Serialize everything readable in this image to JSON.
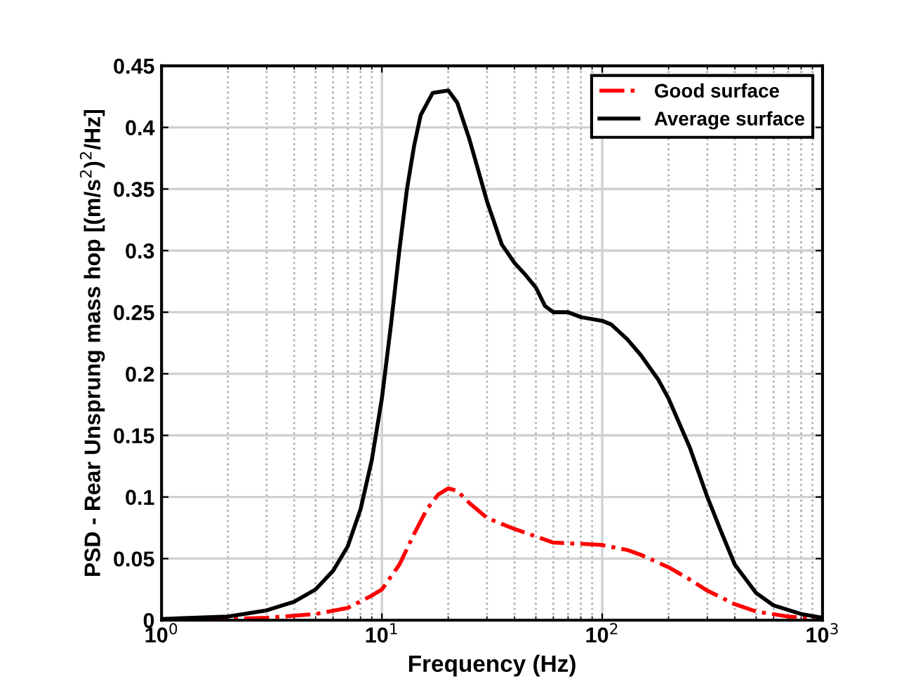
{
  "chart_data": {
    "type": "line",
    "xlabel": "Frequency (Hz)",
    "ylabel": "PSD - Rear Unsprung mass hop [(m/s$^{2}$)$^{2}$/Hz]",
    "log": "x",
    "xlim": [
      1,
      1000
    ],
    "xticks": [
      {
        "value": 1,
        "label": "10$^{0}$"
      },
      {
        "value": 10,
        "label": "10$^{1}$"
      },
      {
        "value": 100,
        "label": "10$^{2}$"
      },
      {
        "value": 1000,
        "label": "10$^{3}$"
      }
    ],
    "ylim": [
      0,
      0.45
    ],
    "yticks": [
      0,
      0.05,
      0.1,
      0.15,
      0.2,
      0.25,
      0.3,
      0.35,
      0.4,
      0.45
    ],
    "grid": true,
    "legend": "top right",
    "marker": "none",
    "series": [
      {
        "name": "Good surface",
        "color": "#ff0000",
        "line_style": "dashdot",
        "x": [
          1,
          2,
          3,
          5,
          7,
          9,
          10,
          12,
          14,
          16,
          18,
          20,
          22,
          25,
          30,
          40,
          50,
          60,
          80,
          100,
          130,
          150,
          200,
          250,
          300,
          400,
          500,
          700,
          1000
        ],
        "values": [
          0,
          0.001,
          0.002,
          0.005,
          0.01,
          0.02,
          0.025,
          0.045,
          0.07,
          0.09,
          0.102,
          0.107,
          0.105,
          0.095,
          0.083,
          0.074,
          0.068,
          0.063,
          0.062,
          0.061,
          0.057,
          0.053,
          0.043,
          0.033,
          0.024,
          0.013,
          0.007,
          0.003,
          0.001
        ]
      },
      {
        "name": "Average surface",
        "color": "#000000",
        "line_style": "solid",
        "x": [
          1,
          2,
          3,
          4,
          5,
          6,
          7,
          8,
          9,
          10,
          11,
          12,
          13,
          14,
          15,
          17,
          20,
          22,
          25,
          30,
          35,
          40,
          45,
          50,
          55,
          60,
          70,
          80,
          100,
          110,
          130,
          150,
          180,
          200,
          250,
          300,
          350,
          400,
          500,
          600,
          800,
          1000
        ],
        "values": [
          0.001,
          0.003,
          0.008,
          0.015,
          0.025,
          0.04,
          0.06,
          0.09,
          0.13,
          0.18,
          0.24,
          0.3,
          0.35,
          0.385,
          0.41,
          0.428,
          0.43,
          0.42,
          0.39,
          0.34,
          0.305,
          0.29,
          0.28,
          0.27,
          0.255,
          0.25,
          0.25,
          0.246,
          0.243,
          0.24,
          0.228,
          0.215,
          0.195,
          0.18,
          0.14,
          0.1,
          0.07,
          0.045,
          0.022,
          0.012,
          0.005,
          0.002
        ]
      }
    ]
  }
}
